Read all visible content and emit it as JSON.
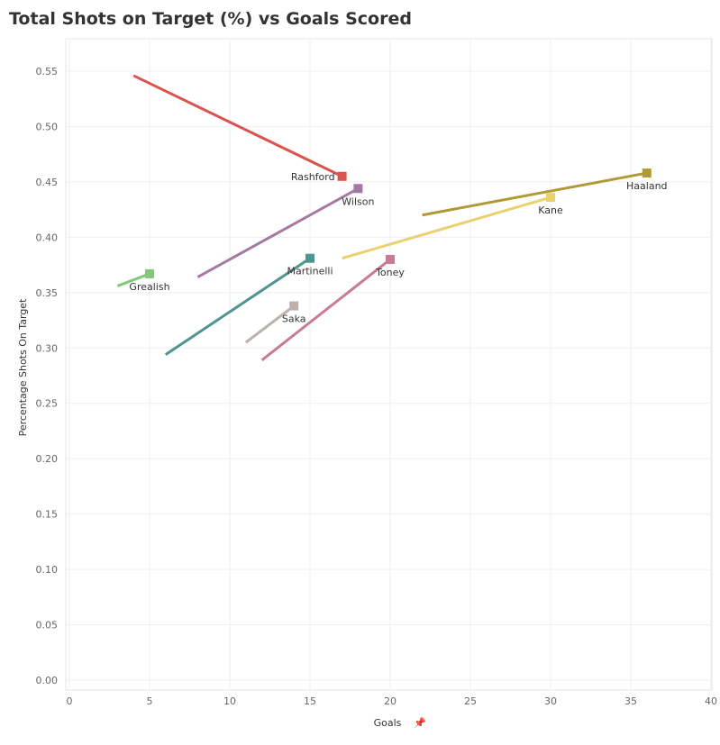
{
  "title": "Total Shots on Target (%) vs Goals Scored",
  "chart_data": {
    "type": "line",
    "title": "Total Shots on Target (%) vs Goals Scored",
    "xlabel": "Goals",
    "ylabel": "Percentage Shots On Target",
    "xlim": [
      0,
      40
    ],
    "ylim": [
      0,
      0.55
    ],
    "x_ticks": [
      "0",
      "5",
      "10",
      "15",
      "20",
      "25",
      "30",
      "35",
      "40"
    ],
    "y_ticks": [
      "0.00",
      "0.05",
      "0.10",
      "0.15",
      "0.20",
      "0.25",
      "0.30",
      "0.35",
      "0.40",
      "0.45",
      "0.50",
      "0.55"
    ],
    "grid": true,
    "series": [
      {
        "name": "Rashford",
        "color": "#d9534f",
        "start": [
          4,
          0.546
        ],
        "end": [
          17,
          0.455
        ],
        "label_position": "left"
      },
      {
        "name": "Wilson",
        "color": "#a47aa3",
        "start": [
          8,
          0.364
        ],
        "end": [
          18,
          0.444
        ],
        "label_position": "below"
      },
      {
        "name": "Haaland",
        "color": "#b19a35",
        "start": [
          22,
          0.42
        ],
        "end": [
          36,
          0.458
        ],
        "label_position": "below"
      },
      {
        "name": "Kane",
        "color": "#ebd070",
        "start": [
          17,
          0.381
        ],
        "end": [
          30,
          0.436
        ],
        "label_position": "below"
      },
      {
        "name": "Grealish",
        "color": "#82c77a",
        "start": [
          3,
          0.356
        ],
        "end": [
          5,
          0.367
        ],
        "label_position": "below"
      },
      {
        "name": "Martinelli",
        "color": "#4d958f",
        "start": [
          6,
          0.294
        ],
        "end": [
          15,
          0.381
        ],
        "label_position": "below"
      },
      {
        "name": "Toney",
        "color": "#c97a94",
        "start": [
          12,
          0.289
        ],
        "end": [
          20,
          0.38
        ],
        "label_position": "below"
      },
      {
        "name": "Saka",
        "color": "#bcb2ab",
        "start": [
          11,
          0.305
        ],
        "end": [
          14,
          0.338
        ],
        "label_position": "below"
      }
    ]
  }
}
